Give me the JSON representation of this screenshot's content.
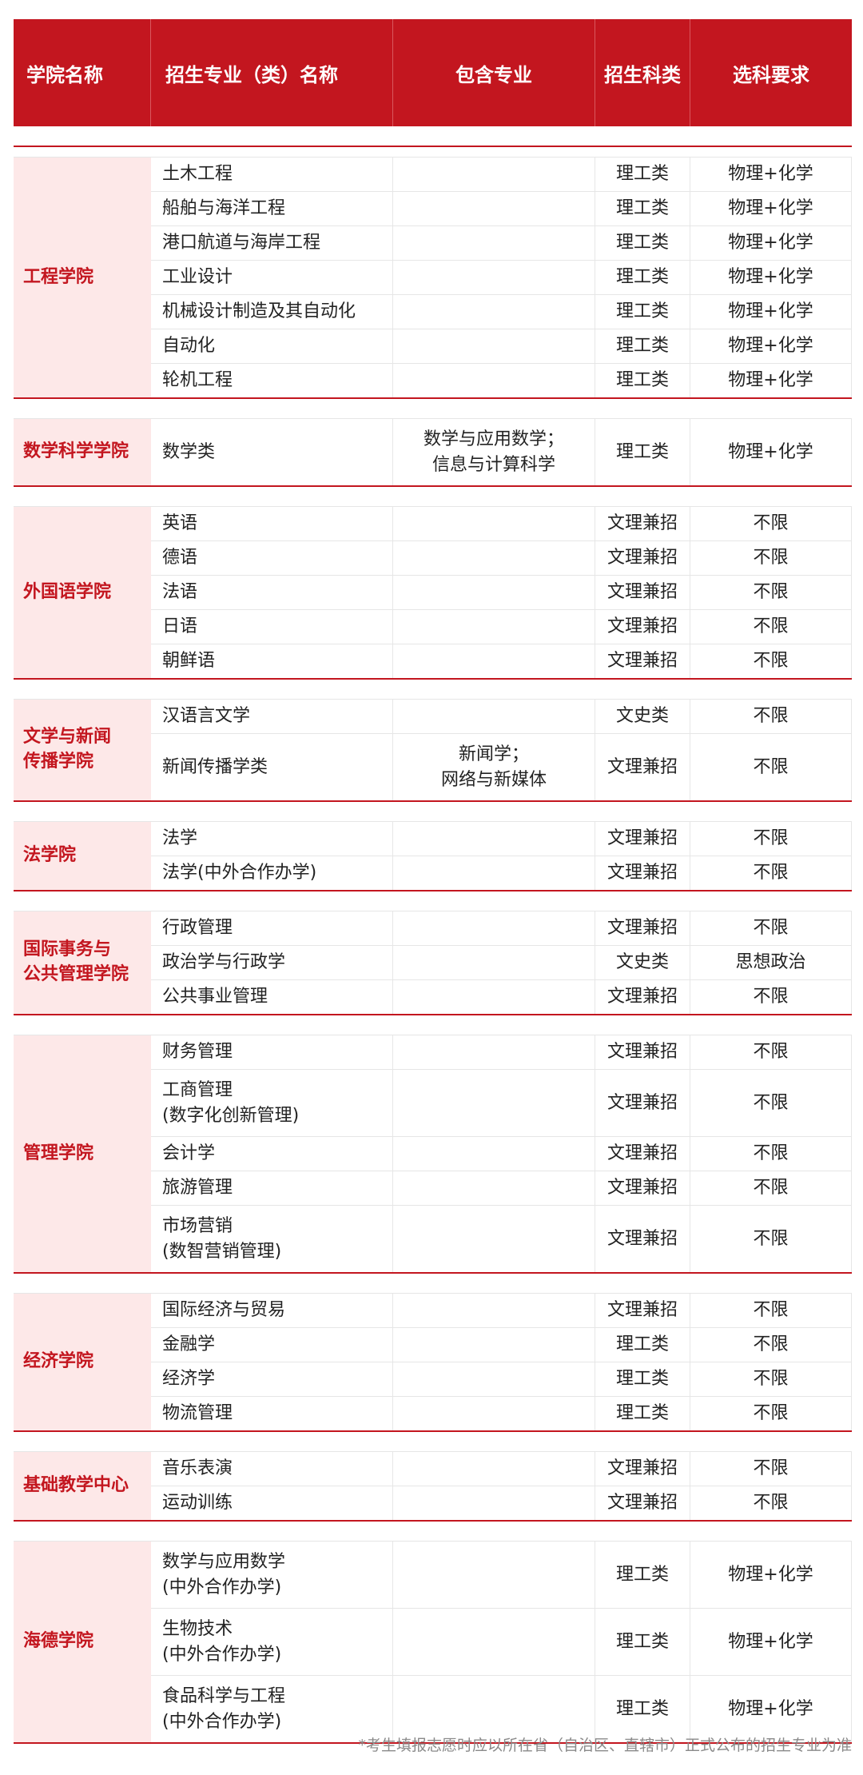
{
  "header": {
    "college": "学院名称",
    "major": "招生专业（类）名称",
    "includes": "包含专业",
    "category": "招生科类",
    "requirement": "选科要求"
  },
  "colors": {
    "accent": "#c3161f",
    "college_bg": "#fde8e8"
  },
  "groups": [
    {
      "name": "工程学院",
      "rows": [
        {
          "major": "土木工程",
          "includes": "",
          "category": "理工类",
          "req": "物理+化学"
        },
        {
          "major": "船舶与海洋工程",
          "includes": "",
          "category": "理工类",
          "req": "物理+化学"
        },
        {
          "major": "港口航道与海岸工程",
          "includes": "",
          "category": "理工类",
          "req": "物理+化学"
        },
        {
          "major": "工业设计",
          "includes": "",
          "category": "理工类",
          "req": "物理+化学"
        },
        {
          "major": "机械设计制造及其自动化",
          "includes": "",
          "category": "理工类",
          "req": "物理+化学"
        },
        {
          "major": "自动化",
          "includes": "",
          "category": "理工类",
          "req": "物理+化学"
        },
        {
          "major": "轮机工程",
          "includes": "",
          "category": "理工类",
          "req": "物理+化学"
        }
      ]
    },
    {
      "name": "数学科学学院",
      "rows": [
        {
          "major": "数学类",
          "includes": "数学与应用数学；\n信息与计算科学",
          "category": "理工类",
          "req": "物理+化学"
        }
      ]
    },
    {
      "name": "外国语学院",
      "rows": [
        {
          "major": "英语",
          "includes": "",
          "category": "文理兼招",
          "req": "不限"
        },
        {
          "major": "德语",
          "includes": "",
          "category": "文理兼招",
          "req": "不限"
        },
        {
          "major": "法语",
          "includes": "",
          "category": "文理兼招",
          "req": "不限"
        },
        {
          "major": "日语",
          "includes": "",
          "category": "文理兼招",
          "req": "不限"
        },
        {
          "major": "朝鲜语",
          "includes": "",
          "category": "文理兼招",
          "req": "不限"
        }
      ]
    },
    {
      "name": "文学与新闻\n传播学院",
      "rows": [
        {
          "major": "汉语言文学",
          "includes": "",
          "category": "文史类",
          "req": "不限"
        },
        {
          "major": "新闻传播学类",
          "includes": "新闻学；\n网络与新媒体",
          "category": "文理兼招",
          "req": "不限"
        }
      ]
    },
    {
      "name": "法学院",
      "rows": [
        {
          "major": "法学",
          "includes": "",
          "category": "文理兼招",
          "req": "不限"
        },
        {
          "major": "法学(中外合作办学)",
          "includes": "",
          "category": "文理兼招",
          "req": "不限"
        }
      ]
    },
    {
      "name": "国际事务与\n公共管理学院",
      "rows": [
        {
          "major": "行政管理",
          "includes": "",
          "category": "文理兼招",
          "req": "不限"
        },
        {
          "major": "政治学与行政学",
          "includes": "",
          "category": "文史类",
          "req": "思想政治"
        },
        {
          "major": "公共事业管理",
          "includes": "",
          "category": "文理兼招",
          "req": "不限"
        }
      ]
    },
    {
      "name": "管理学院",
      "rows": [
        {
          "major": "财务管理",
          "includes": "",
          "category": "文理兼招",
          "req": "不限"
        },
        {
          "major": "工商管理\n(数字化创新管理)",
          "includes": "",
          "category": "文理兼招",
          "req": "不限"
        },
        {
          "major": "会计学",
          "includes": "",
          "category": "文理兼招",
          "req": "不限"
        },
        {
          "major": "旅游管理",
          "includes": "",
          "category": "文理兼招",
          "req": "不限"
        },
        {
          "major": "市场营销\n(数智营销管理)",
          "includes": "",
          "category": "文理兼招",
          "req": "不限"
        }
      ]
    },
    {
      "name": "经济学院",
      "rows": [
        {
          "major": "国际经济与贸易",
          "includes": "",
          "category": "文理兼招",
          "req": "不限"
        },
        {
          "major": "金融学",
          "includes": "",
          "category": "理工类",
          "req": "不限"
        },
        {
          "major": "经济学",
          "includes": "",
          "category": "理工类",
          "req": "不限"
        },
        {
          "major": "物流管理",
          "includes": "",
          "category": "理工类",
          "req": "不限"
        }
      ]
    },
    {
      "name": "基础教学中心",
      "rows": [
        {
          "major": "音乐表演",
          "includes": "",
          "category": "文理兼招",
          "req": "不限"
        },
        {
          "major": "运动训练",
          "includes": "",
          "category": "文理兼招",
          "req": "不限"
        }
      ]
    },
    {
      "name": "海德学院",
      "rows": [
        {
          "major": "数学与应用数学\n(中外合作办学)",
          "includes": "",
          "category": "理工类",
          "req": "物理+化学"
        },
        {
          "major": "生物技术\n(中外合作办学)",
          "includes": "",
          "category": "理工类",
          "req": "物理+化学"
        },
        {
          "major": "食品科学与工程\n(中外合作办学)",
          "includes": "",
          "category": "理工类",
          "req": "物理+化学"
        }
      ]
    }
  ],
  "footnote": "*考生填报志愿时应以所在省（自治区、直辖市）正式公布的招生专业为准"
}
